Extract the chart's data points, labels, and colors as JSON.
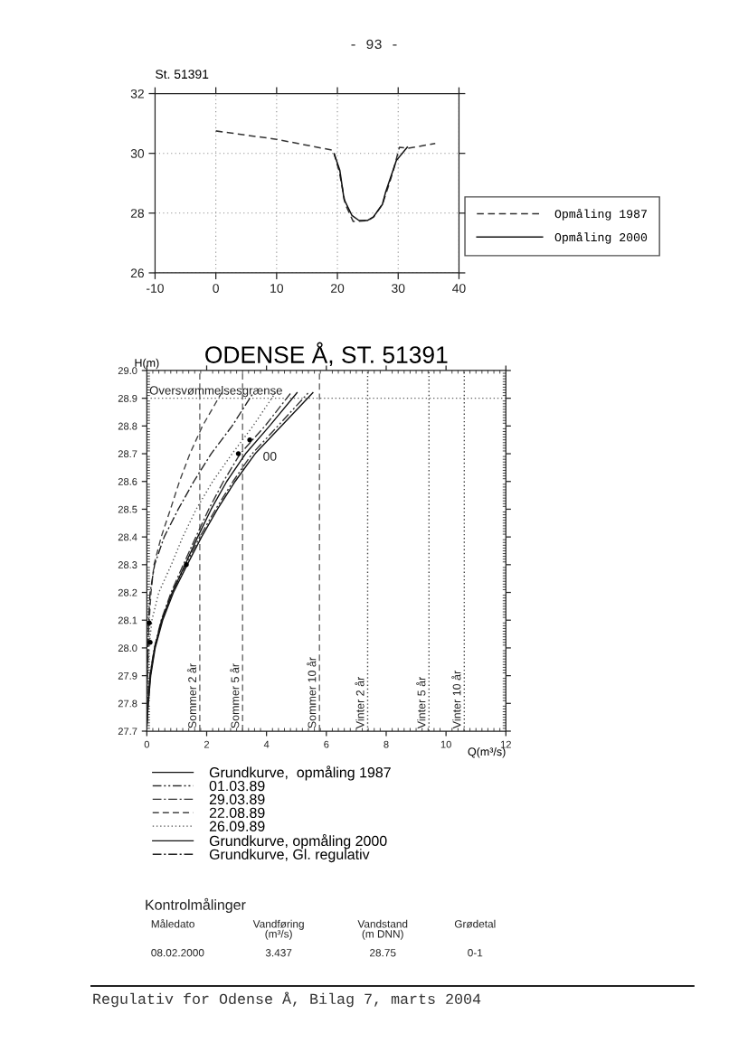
{
  "chart_data": [
    {
      "type": "line",
      "title": "St. 51391",
      "annotations": [
        "- 93 -"
      ],
      "xlim": [
        -10,
        40
      ],
      "ylim": [
        26,
        32
      ],
      "xticks": [
        -10,
        0,
        10,
        20,
        30,
        40
      ],
      "yticks": [
        26,
        28,
        30,
        32
      ],
      "grid": true,
      "legend": "right",
      "series": [
        {
          "name": "Opmåling 1987",
          "color": "#333333",
          "line_style": "dashed",
          "x": [
            0,
            10,
            19.3,
            20.3,
            21.3,
            22.6,
            23.5,
            25.0,
            26.0,
            27.4,
            28.4,
            29.3,
            30.2,
            31.6,
            36.1
          ],
          "values": [
            30.75,
            30.47,
            30.1,
            29.4,
            28.3,
            27.72,
            27.73,
            27.75,
            27.88,
            28.3,
            28.9,
            29.5,
            30.2,
            30.17,
            30.33
          ]
        },
        {
          "name": "Opmåling 2000",
          "color": "#111111",
          "line_style": "solid",
          "x": [
            19.5,
            20.4,
            21.1,
            22.4,
            23.5,
            24.9,
            25.9,
            27.4,
            27.9,
            29.7,
            31.5
          ],
          "values": [
            29.97,
            29.43,
            28.46,
            27.92,
            27.76,
            27.75,
            27.87,
            28.29,
            28.68,
            29.76,
            30.21
          ]
        }
      ]
    },
    {
      "type": "line",
      "title": "ODENSE Å, ST. 51391",
      "xlabel": "Q(m³/s)",
      "ylabel": "H(m)",
      "xlim": [
        0,
        12
      ],
      "ylim": [
        27.7,
        29.0
      ],
      "xticks": [
        0,
        2,
        4,
        6,
        8,
        10,
        12
      ],
      "yticks": [
        27.7,
        27.8,
        27.9,
        {
          "value": 28,
          "label": "28.0"
        },
        28.1,
        28.2,
        28.3,
        28.4,
        28.5,
        28.6,
        28.7,
        28.8,
        28.9,
        {
          "value": 29,
          "label": "29.0"
        }
      ],
      "legend": "bottom",
      "series": [
        {
          "name": "Grundkurve,  opmåling 1987",
          "color": "#111111",
          "line_style": "solid",
          "x": [
            0.0,
            0.05,
            0.13,
            0.28,
            0.53,
            0.89,
            1.35,
            1.83,
            2.36,
            2.95,
            3.62,
            4.5,
            5.55
          ],
          "values": [
            27.72,
            27.8,
            27.9,
            28.0,
            28.1,
            28.2,
            28.3,
            28.4,
            28.5,
            28.6,
            28.7,
            28.8,
            28.92
          ]
        },
        {
          "name": "01.03.89",
          "color": "#333333",
          "line_style": "dashdotdot",
          "x": [
            0.0,
            0.04,
            0.12,
            0.26,
            0.5,
            0.85,
            1.3,
            1.77,
            2.3,
            2.88,
            3.52,
            4.38,
            5.4
          ],
          "values": [
            27.72,
            27.8,
            27.9,
            28.0,
            28.1,
            28.2,
            28.3,
            28.4,
            28.5,
            28.6,
            28.7,
            28.8,
            28.92
          ]
        },
        {
          "name": "29.03.89",
          "color": "#333333",
          "line_style": "dashdot",
          "x": [
            0.0,
            0.03,
            0.1,
            0.25,
            0.48,
            0.81,
            1.22,
            1.64,
            2.07,
            2.56,
            3.12,
            3.95,
            4.82
          ],
          "values": [
            27.72,
            27.8,
            27.9,
            28.0,
            28.1,
            28.2,
            28.3,
            28.4,
            28.5,
            28.6,
            28.7,
            28.8,
            28.92
          ]
        },
        {
          "name": "22.08.89",
          "color": "#444444",
          "line_style": "dashed",
          "x": [
            0.0,
            0.0,
            0.01,
            0.04,
            0.08,
            0.14,
            0.24,
            0.48,
            0.79,
            1.09,
            1.44,
            1.86,
            2.5
          ],
          "values": [
            27.72,
            27.8,
            27.9,
            28.0,
            28.1,
            28.2,
            28.3,
            28.4,
            28.5,
            28.6,
            28.7,
            28.8,
            28.92
          ]
        },
        {
          "name": "26.09.89",
          "color": "#555555",
          "line_style": "dotted",
          "x": [
            0.0,
            0.01,
            0.03,
            0.07,
            0.17,
            0.4,
            0.82,
            1.2,
            1.65,
            2.2,
            2.85,
            3.55,
            4.3
          ],
          "values": [
            27.72,
            27.8,
            27.9,
            28.0,
            28.1,
            28.2,
            28.3,
            28.4,
            28.5,
            28.6,
            28.7,
            28.8,
            28.92
          ]
        },
        {
          "name": "Grundkurve, opmåling 2000",
          "color": "#111111",
          "line_style": "solid",
          "x": [
            0.0,
            0.04,
            0.11,
            0.26,
            0.5,
            0.85,
            1.28,
            1.7,
            2.15,
            2.67,
            3.3,
            4.1,
            5.02
          ],
          "values": [
            27.72,
            27.8,
            27.9,
            28.0,
            28.1,
            28.2,
            28.3,
            28.4,
            28.5,
            28.6,
            28.7,
            28.8,
            28.92
          ]
        },
        {
          "name": "Grundkurve, Gl. regulativ",
          "color": "#222222",
          "line_style": "dashdot",
          "x": [
            0.0,
            0.01,
            0.02,
            0.04,
            0.06,
            0.11,
            0.26,
            0.58,
            1.05,
            1.57,
            2.15,
            2.85,
            3.56
          ],
          "values": [
            27.72,
            27.8,
            27.9,
            28.0,
            28.1,
            28.2,
            28.3,
            28.4,
            28.5,
            28.6,
            28.7,
            28.8,
            28.92
          ]
        },
        {
          "type": "scatter",
          "color": "#000000",
          "marker": "circle",
          "x": [
            3.06,
            3.44,
            1.32,
            0.08,
            0.11
          ],
          "values": [
            28.7,
            28.75,
            28.3,
            28.09,
            28.02
          ]
        }
      ],
      "ref_lines": [
        {
          "axis": "y",
          "value": 28.9,
          "label": "Oversvømmelsesgrænse",
          "color": "#666666",
          "line_style": "dotted"
        },
        {
          "axis": "x",
          "value": 1.77,
          "label": "Sommer 2 år",
          "color": "#666666",
          "line_style": "dashed"
        },
        {
          "axis": "x",
          "value": 3.2,
          "label": "Sommer 5 år",
          "color": "#666666",
          "line_style": "dashed"
        },
        {
          "axis": "x",
          "value": 5.77,
          "label": "Sommer 10 år",
          "color": "#666666",
          "line_style": "dashed"
        },
        {
          "axis": "x",
          "value": 7.38,
          "label": "Vinter 2 år",
          "color": "#444444",
          "line_style": "dotted"
        },
        {
          "axis": "x",
          "value": 9.43,
          "label": "Vinter 5 år",
          "color": "#444444",
          "line_style": "dotted"
        },
        {
          "axis": "x",
          "value": 10.61,
          "label": "Vinter 10 år",
          "color": "#444444",
          "line_style": "dotted"
        }
      ],
      "annotations": [
        {
          "text": "00",
          "x": 3.44,
          "y": 28.75
        }
      ]
    },
    {
      "type": "other",
      "title": "Kontrolmålinger",
      "annotations": [
        "Måledato",
        "Vandføring\n(m³/s)",
        "Vandstand\n(m DNN)",
        "Grødetal",
        "08.02.2000",
        "3.437",
        "28.75",
        "0-1"
      ]
    },
    {
      "type": "other",
      "annotations": [
        "Regulativ for Odense Å, Bilag 7, marts 2004"
      ]
    }
  ]
}
